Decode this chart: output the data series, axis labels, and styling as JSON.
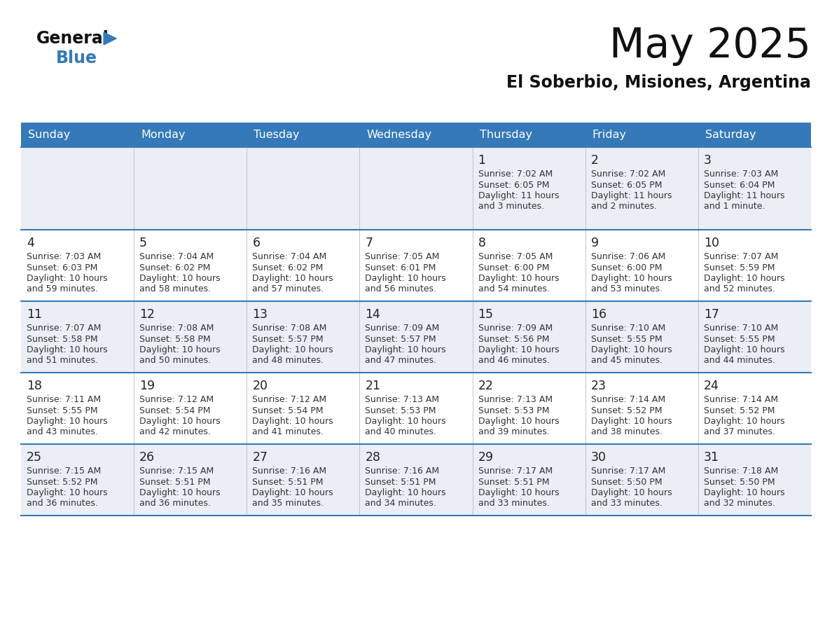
{
  "title": "May 2025",
  "subtitle": "El Soberbio, Misiones, Argentina",
  "header_bg": "#3579B8",
  "header_text": "#FFFFFF",
  "day_names": [
    "Sunday",
    "Monday",
    "Tuesday",
    "Wednesday",
    "Thursday",
    "Friday",
    "Saturday"
  ],
  "alt_row_bg": "#EAEFF5",
  "white_row_bg": "#FFFFFF",
  "cell_border_color": "#3579B8",
  "day_num_color": "#222222",
  "info_color": "#333333",
  "calendar": [
    [
      null,
      null,
      null,
      null,
      {
        "day": 1,
        "sunrise": "7:02 AM",
        "sunset": "6:05 PM",
        "daylight_line1": "Daylight: 11 hours",
        "daylight_line2": "and 3 minutes."
      },
      {
        "day": 2,
        "sunrise": "7:02 AM",
        "sunset": "6:05 PM",
        "daylight_line1": "Daylight: 11 hours",
        "daylight_line2": "and 2 minutes."
      },
      {
        "day": 3,
        "sunrise": "7:03 AM",
        "sunset": "6:04 PM",
        "daylight_line1": "Daylight: 11 hours",
        "daylight_line2": "and 1 minute."
      }
    ],
    [
      {
        "day": 4,
        "sunrise": "7:03 AM",
        "sunset": "6:03 PM",
        "daylight_line1": "Daylight: 10 hours",
        "daylight_line2": "and 59 minutes."
      },
      {
        "day": 5,
        "sunrise": "7:04 AM",
        "sunset": "6:02 PM",
        "daylight_line1": "Daylight: 10 hours",
        "daylight_line2": "and 58 minutes."
      },
      {
        "day": 6,
        "sunrise": "7:04 AM",
        "sunset": "6:02 PM",
        "daylight_line1": "Daylight: 10 hours",
        "daylight_line2": "and 57 minutes."
      },
      {
        "day": 7,
        "sunrise": "7:05 AM",
        "sunset": "6:01 PM",
        "daylight_line1": "Daylight: 10 hours",
        "daylight_line2": "and 56 minutes."
      },
      {
        "day": 8,
        "sunrise": "7:05 AM",
        "sunset": "6:00 PM",
        "daylight_line1": "Daylight: 10 hours",
        "daylight_line2": "and 54 minutes."
      },
      {
        "day": 9,
        "sunrise": "7:06 AM",
        "sunset": "6:00 PM",
        "daylight_line1": "Daylight: 10 hours",
        "daylight_line2": "and 53 minutes."
      },
      {
        "day": 10,
        "sunrise": "7:07 AM",
        "sunset": "5:59 PM",
        "daylight_line1": "Daylight: 10 hours",
        "daylight_line2": "and 52 minutes."
      }
    ],
    [
      {
        "day": 11,
        "sunrise": "7:07 AM",
        "sunset": "5:58 PM",
        "daylight_line1": "Daylight: 10 hours",
        "daylight_line2": "and 51 minutes."
      },
      {
        "day": 12,
        "sunrise": "7:08 AM",
        "sunset": "5:58 PM",
        "daylight_line1": "Daylight: 10 hours",
        "daylight_line2": "and 50 minutes."
      },
      {
        "day": 13,
        "sunrise": "7:08 AM",
        "sunset": "5:57 PM",
        "daylight_line1": "Daylight: 10 hours",
        "daylight_line2": "and 48 minutes."
      },
      {
        "day": 14,
        "sunrise": "7:09 AM",
        "sunset": "5:57 PM",
        "daylight_line1": "Daylight: 10 hours",
        "daylight_line2": "and 47 minutes."
      },
      {
        "day": 15,
        "sunrise": "7:09 AM",
        "sunset": "5:56 PM",
        "daylight_line1": "Daylight: 10 hours",
        "daylight_line2": "and 46 minutes."
      },
      {
        "day": 16,
        "sunrise": "7:10 AM",
        "sunset": "5:55 PM",
        "daylight_line1": "Daylight: 10 hours",
        "daylight_line2": "and 45 minutes."
      },
      {
        "day": 17,
        "sunrise": "7:10 AM",
        "sunset": "5:55 PM",
        "daylight_line1": "Daylight: 10 hours",
        "daylight_line2": "and 44 minutes."
      }
    ],
    [
      {
        "day": 18,
        "sunrise": "7:11 AM",
        "sunset": "5:55 PM",
        "daylight_line1": "Daylight: 10 hours",
        "daylight_line2": "and 43 minutes."
      },
      {
        "day": 19,
        "sunrise": "7:12 AM",
        "sunset": "5:54 PM",
        "daylight_line1": "Daylight: 10 hours",
        "daylight_line2": "and 42 minutes."
      },
      {
        "day": 20,
        "sunrise": "7:12 AM",
        "sunset": "5:54 PM",
        "daylight_line1": "Daylight: 10 hours",
        "daylight_line2": "and 41 minutes."
      },
      {
        "day": 21,
        "sunrise": "7:13 AM",
        "sunset": "5:53 PM",
        "daylight_line1": "Daylight: 10 hours",
        "daylight_line2": "and 40 minutes."
      },
      {
        "day": 22,
        "sunrise": "7:13 AM",
        "sunset": "5:53 PM",
        "daylight_line1": "Daylight: 10 hours",
        "daylight_line2": "and 39 minutes."
      },
      {
        "day": 23,
        "sunrise": "7:14 AM",
        "sunset": "5:52 PM",
        "daylight_line1": "Daylight: 10 hours",
        "daylight_line2": "and 38 minutes."
      },
      {
        "day": 24,
        "sunrise": "7:14 AM",
        "sunset": "5:52 PM",
        "daylight_line1": "Daylight: 10 hours",
        "daylight_line2": "and 37 minutes."
      }
    ],
    [
      {
        "day": 25,
        "sunrise": "7:15 AM",
        "sunset": "5:52 PM",
        "daylight_line1": "Daylight: 10 hours",
        "daylight_line2": "and 36 minutes."
      },
      {
        "day": 26,
        "sunrise": "7:15 AM",
        "sunset": "5:51 PM",
        "daylight_line1": "Daylight: 10 hours",
        "daylight_line2": "and 36 minutes."
      },
      {
        "day": 27,
        "sunrise": "7:16 AM",
        "sunset": "5:51 PM",
        "daylight_line1": "Daylight: 10 hours",
        "daylight_line2": "and 35 minutes."
      },
      {
        "day": 28,
        "sunrise": "7:16 AM",
        "sunset": "5:51 PM",
        "daylight_line1": "Daylight: 10 hours",
        "daylight_line2": "and 34 minutes."
      },
      {
        "day": 29,
        "sunrise": "7:17 AM",
        "sunset": "5:51 PM",
        "daylight_line1": "Daylight: 10 hours",
        "daylight_line2": "and 33 minutes."
      },
      {
        "day": 30,
        "sunrise": "7:17 AM",
        "sunset": "5:50 PM",
        "daylight_line1": "Daylight: 10 hours",
        "daylight_line2": "and 33 minutes."
      },
      {
        "day": 31,
        "sunrise": "7:18 AM",
        "sunset": "5:50 PM",
        "daylight_line1": "Daylight: 10 hours",
        "daylight_line2": "and 32 minutes."
      }
    ]
  ]
}
